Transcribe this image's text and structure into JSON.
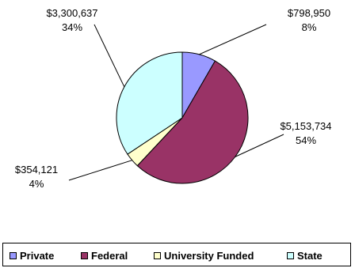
{
  "chart_data": {
    "type": "pie",
    "slices": [
      {
        "name": "Private",
        "value": 798950,
        "value_label": "$798,950",
        "pct_label": "8%",
        "color": "#9999ff"
      },
      {
        "name": "Federal",
        "value": 5153734,
        "value_label": "$5,153,734",
        "pct_label": "54%",
        "color": "#993366"
      },
      {
        "name": "University Funded",
        "value": 354121,
        "value_label": "$354,121",
        "pct_label": "4%",
        "color": "#ffffcc"
      },
      {
        "name": "State",
        "value": 3300637,
        "value_label": "$3,300,637",
        "pct_label": "34%",
        "color": "#ccffff"
      }
    ],
    "start_angle_deg": 0,
    "direction": "clockwise",
    "legend_position": "bottom"
  }
}
